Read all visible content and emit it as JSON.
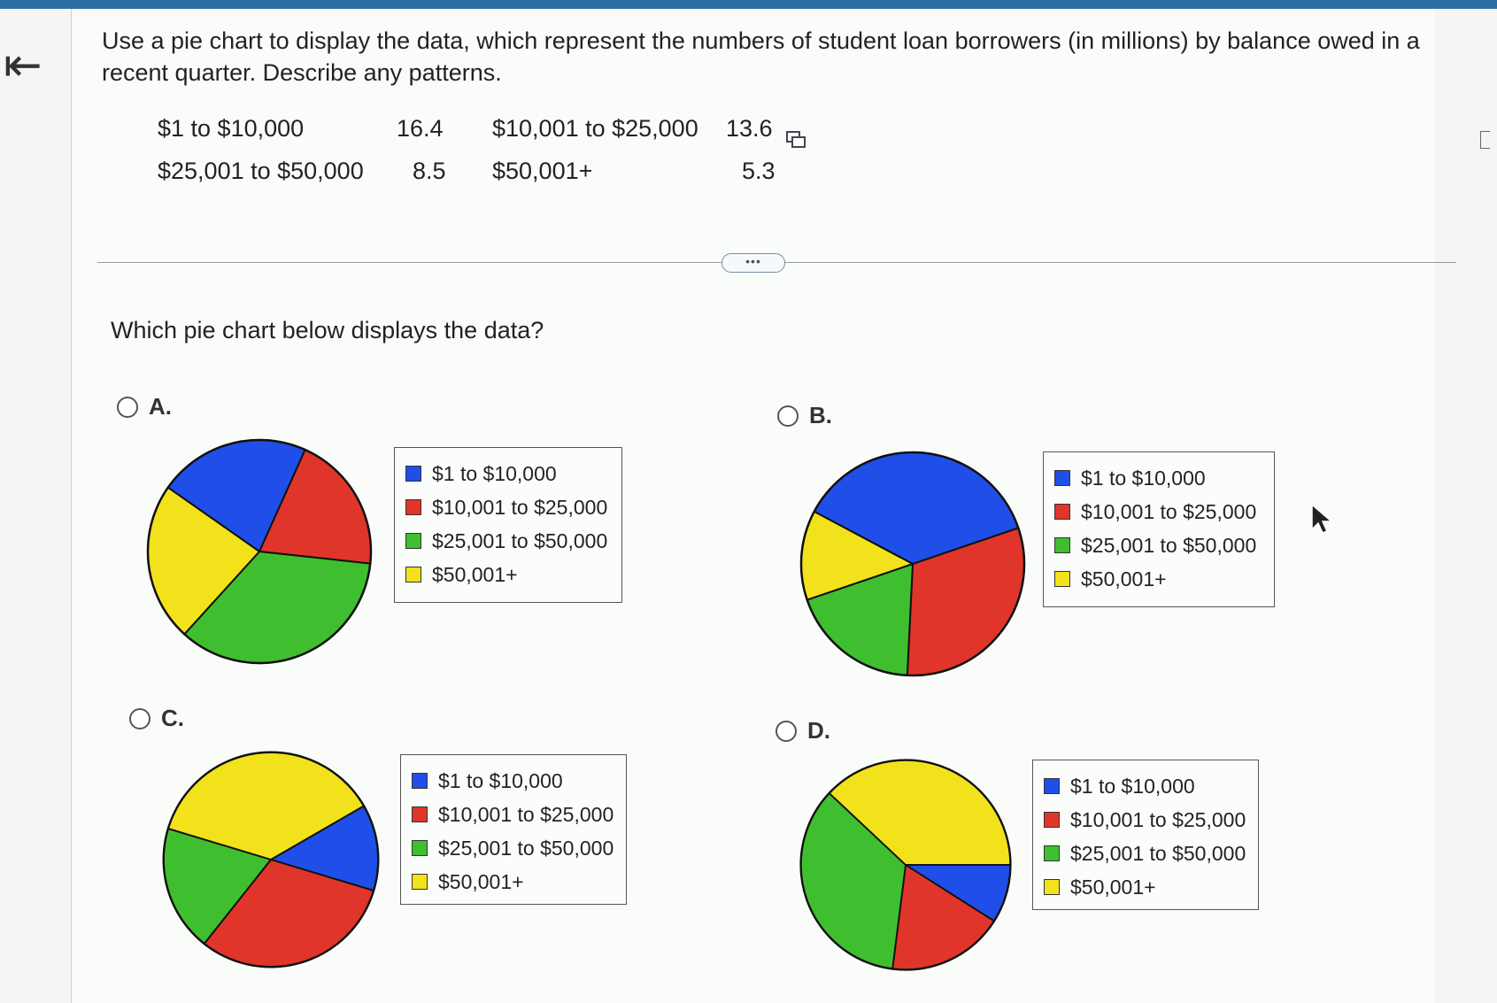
{
  "question": "Use a pie chart to display the data, which represent the numbers of student loan borrowers (in millions) by balance owed in a recent quarter. Describe any patterns.",
  "table": [
    {
      "label": "$1 to $10,000",
      "value": "16.4"
    },
    {
      "label": "$10,001 to $25,000",
      "value": "13.6"
    },
    {
      "label": "$25,001 to $50,000",
      "value": "8.5"
    },
    {
      "label": "$50,001+",
      "value": "5.3"
    }
  ],
  "more_label": "•••",
  "prompt": "Which pie chart below displays the data?",
  "options": [
    {
      "label": "A.",
      "legend": [
        "$1 to $10,000",
        "$10,001 to $25,000",
        "$25,001 to $50,000",
        "$50,001+"
      ]
    },
    {
      "label": "B.",
      "legend": [
        "$1 to $10,000",
        "$10,001 to $25,000",
        "$25,001 to $50,000",
        "$50,001+"
      ]
    },
    {
      "label": "C.",
      "legend": [
        "$1 to $10,000",
        "$10,001 to $25,000",
        "$25,001 to $50,000",
        "$50,001+"
      ]
    },
    {
      "label": "D.",
      "legend": [
        "$1 to $10,000",
        "$10,001 to $25,000",
        "$25,001 to $50,000",
        "$50,001+"
      ]
    }
  ],
  "colors": {
    "blue": "#1f4fe8",
    "red": "#e0352a",
    "green": "#3fbf2f",
    "yellow": "#f2e21c"
  },
  "icons": {
    "back": "back-arrow-icon",
    "copy": "copy-icon",
    "cursor": "mouse-pointer-icon"
  },
  "chart_data": [
    {
      "type": "pie",
      "option": "A",
      "categories": [
        "$1 to $10,000",
        "$10,001 to $25,000",
        "$25,001 to $50,000",
        "$50,001+"
      ],
      "values": [
        22,
        20,
        35,
        23
      ]
    },
    {
      "type": "pie",
      "option": "B",
      "categories": [
        "$1 to $10,000",
        "$10,001 to $25,000",
        "$25,001 to $50,000",
        "$50,001+"
      ],
      "values": [
        37,
        31,
        19,
        13
      ]
    },
    {
      "type": "pie",
      "option": "C",
      "categories": [
        "$1 to $10,000",
        "$10,001 to $25,000",
        "$25,001 to $50,000",
        "$50,001+"
      ],
      "values": [
        13,
        31,
        19,
        37
      ]
    },
    {
      "type": "pie",
      "option": "D",
      "categories": [
        "$1 to $10,000",
        "$10,001 to $25,000",
        "$25,001 to $50,000",
        "$50,001+"
      ],
      "values": [
        9,
        18,
        35,
        38
      ]
    }
  ]
}
